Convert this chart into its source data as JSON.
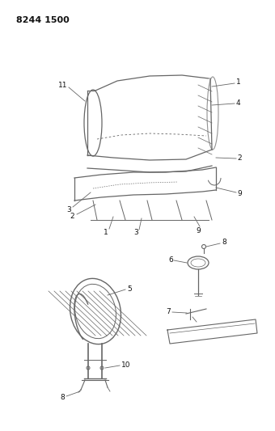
{
  "title_code": "8244 1500",
  "bg_color": "#ffffff",
  "line_color": "#666666",
  "text_color": "#222222",
  "fig_width": 3.4,
  "fig_height": 5.33,
  "dpi": 100
}
